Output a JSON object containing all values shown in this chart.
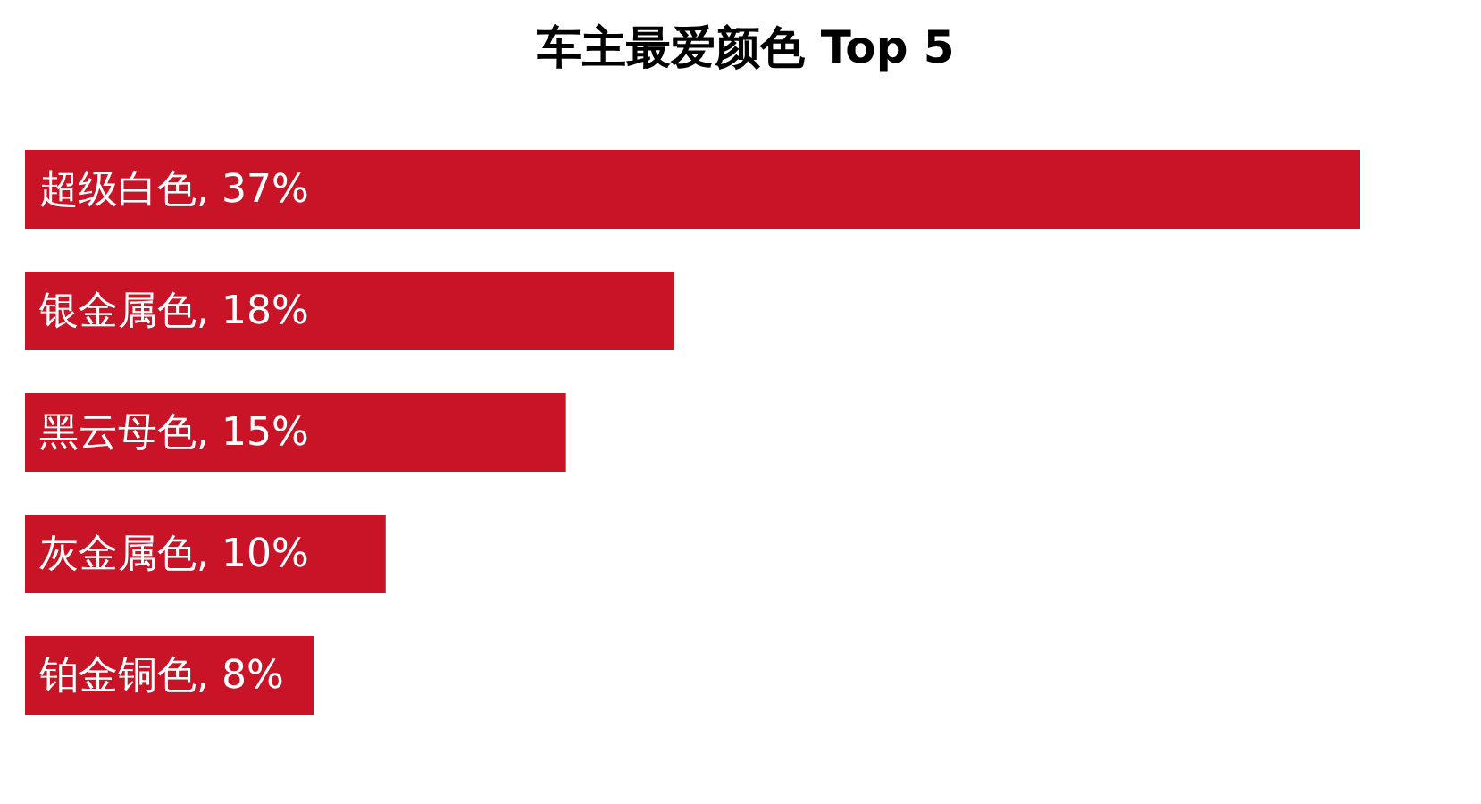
{
  "chart_data": {
    "type": "bar",
    "title": "车主最爱颜色 Top 5",
    "orientation": "horizontal",
    "categories": [
      null,
      null,
      null,
      null,
      null
    ],
    "values": [
      37,
      18,
      15,
      10,
      8
    ],
    "color": "#c91326",
    "value_labels": [
      "超级白色, 37%",
      "银金属色, 18%",
      "黑云母色, 15%",
      "灰金属色, 10%",
      "铂金铜色, 8%"
    ],
    "tick_labels": false
  }
}
